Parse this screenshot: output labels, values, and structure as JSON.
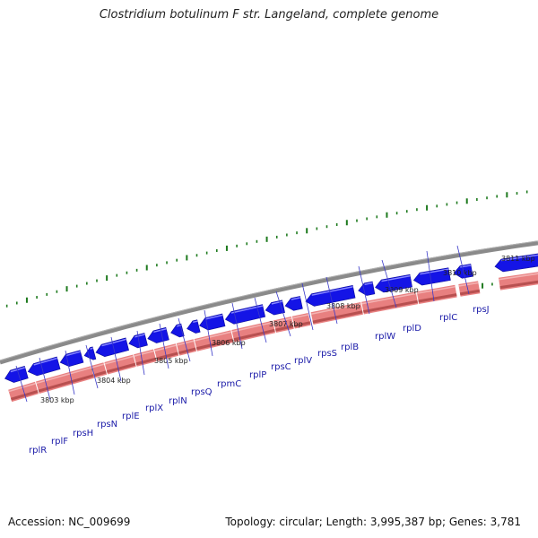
{
  "title": "Clostridium botulinum F str. Langeland, complete genome",
  "footer": {
    "accession": "Accession: NC_009699",
    "summary": "Topology: circular; Length: 3,995,387 bp; Genes: 3,781"
  },
  "colors": {
    "backbone": "#8a8a8a",
    "cds_forward": "#1414e6",
    "cds_forward_highlight": "#8a8aff",
    "cds_reverse": "#e88080",
    "cds_reverse_shadow": "#b85050",
    "gc_ticks": "#1e7a1e",
    "gene_label": "#1a1aa8",
    "leader_line": "#3a3ac8"
  },
  "ruler_labels": [
    {
      "text": "3803 kbp"
    },
    {
      "text": "3804 kbp"
    },
    {
      "text": "3805 kbp"
    },
    {
      "text": "3806 kbp"
    },
    {
      "text": "3807 kbp"
    },
    {
      "text": "3808 kbp"
    },
    {
      "text": "3809 kbp"
    },
    {
      "text": "3810 kbp"
    },
    {
      "text": "3811 kbp"
    }
  ],
  "genes": [
    {
      "name": "rplR"
    },
    {
      "name": "rplF"
    },
    {
      "name": "rpsH"
    },
    {
      "name": "rpsN"
    },
    {
      "name": "rplE"
    },
    {
      "name": "rplX"
    },
    {
      "name": "rplN"
    },
    {
      "name": "rpsQ"
    },
    {
      "name": "rpmC"
    },
    {
      "name": "rplP"
    },
    {
      "name": "rpsC"
    },
    {
      "name": "rplV"
    },
    {
      "name": "rpsS"
    },
    {
      "name": "rplB"
    },
    {
      "name": "rplW"
    },
    {
      "name": "rplD"
    },
    {
      "name": "rplC"
    },
    {
      "name": "rpsJ"
    }
  ]
}
